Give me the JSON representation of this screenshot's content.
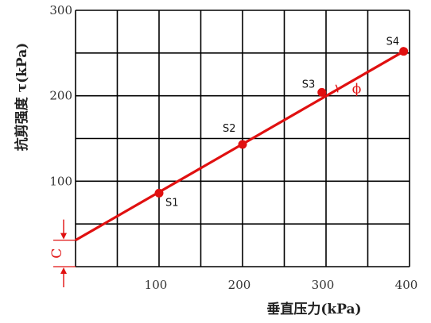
{
  "chart_data": {
    "type": "scatter",
    "title": "",
    "xlabel": "垂直压力(kPa)",
    "ylabel": "抗剪强度 τ(kPa)",
    "xlim": [
      0,
      400
    ],
    "ylim": [
      0,
      300
    ],
    "x_ticks": [
      100,
      200,
      300,
      400
    ],
    "y_ticks": [
      100,
      200,
      300
    ],
    "grid": true,
    "grid_step_x": 50,
    "grid_step_y": 50,
    "points": [
      {
        "label": "S1",
        "x": 100,
        "y": 86
      },
      {
        "label": "S2",
        "x": 200,
        "y": 143
      },
      {
        "label": "S3",
        "x": 295,
        "y": 204
      },
      {
        "label": "S4",
        "x": 393,
        "y": 252
      }
    ],
    "fit_line": {
      "x": [
        0,
        393
      ],
      "y": [
        31,
        252
      ]
    },
    "annotations": {
      "intercept": "C",
      "angle": "ϕ"
    },
    "colors": {
      "data": "#e01010",
      "grid": "#000000",
      "text": "#333333"
    }
  }
}
